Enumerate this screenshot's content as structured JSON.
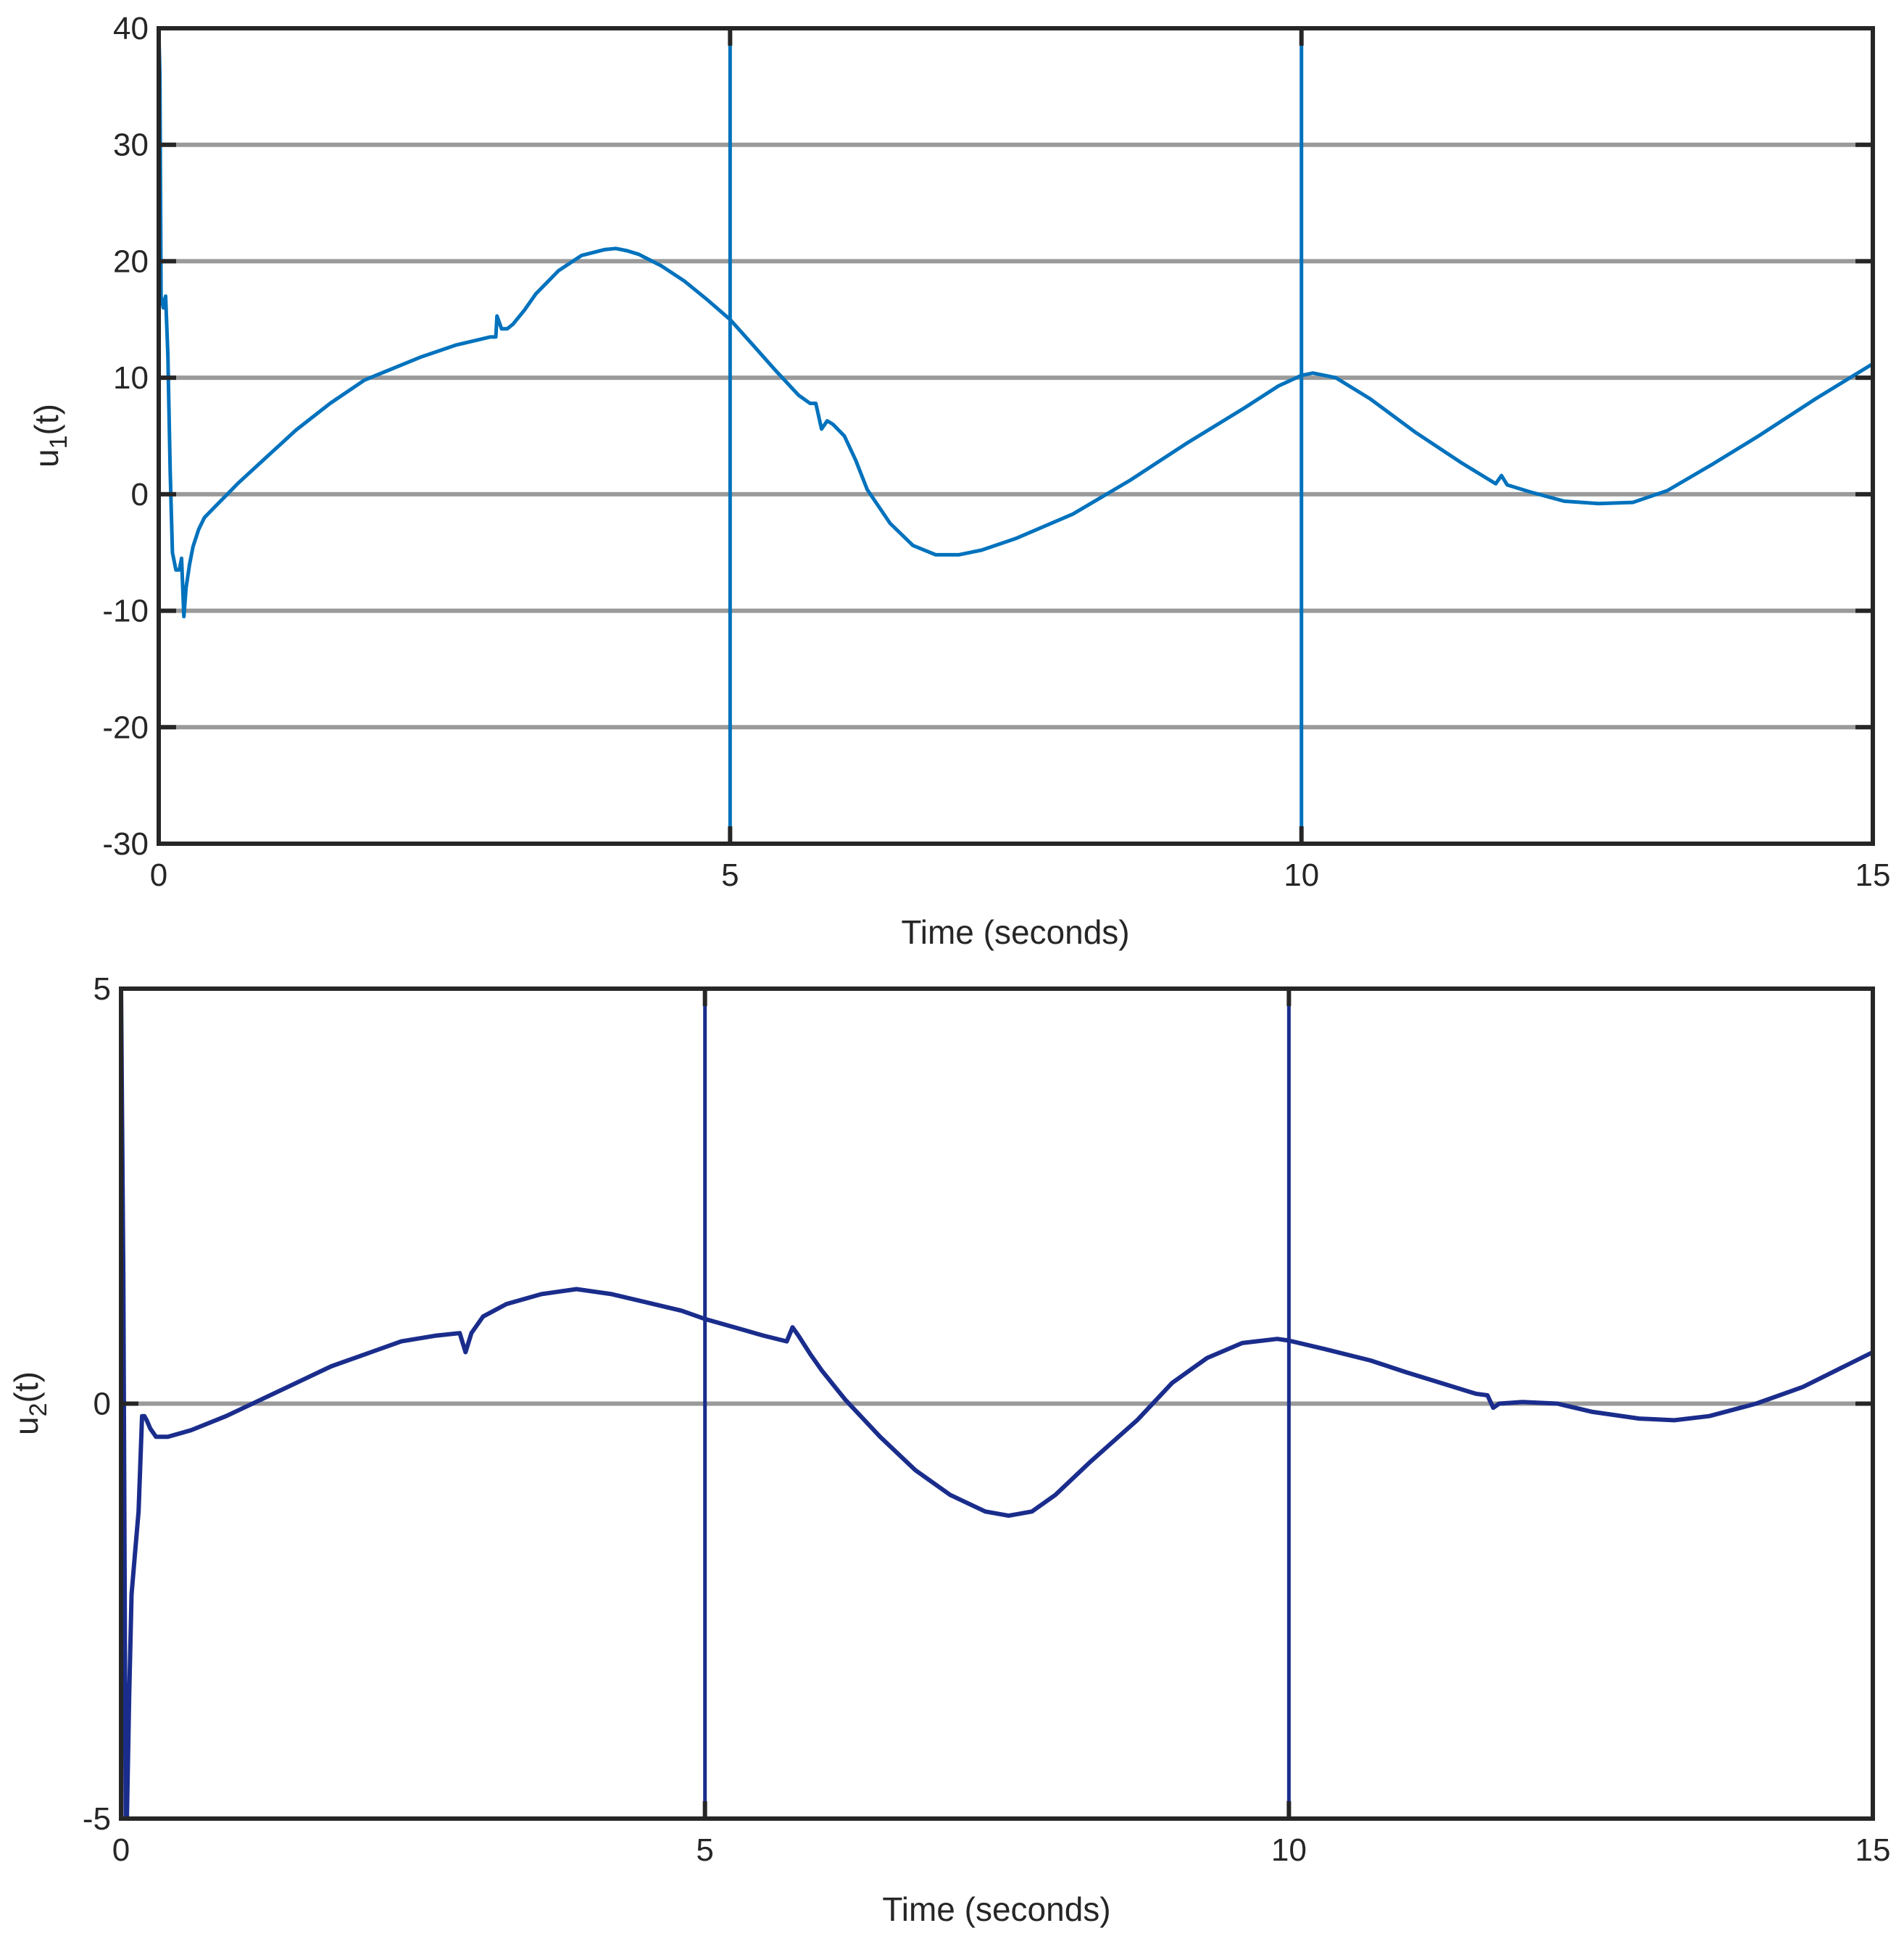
{
  "colors": {
    "series_1": "#0072BD",
    "series_2": "#1A2D8C",
    "grid": "#9a9a9a",
    "axis": "#262626"
  },
  "chart_data": [
    {
      "type": "line",
      "xlabel": "Time (seconds)",
      "ylabel_main": "u",
      "ylabel_sub": "1",
      "ylabel_tail": "(t)",
      "xlim": [
        0,
        15
      ],
      "ylim": [
        -30,
        40
      ],
      "xticks": [
        0,
        5,
        10,
        15
      ],
      "xtick_labels": [
        "0",
        "5",
        "10",
        "15"
      ],
      "yticks": [
        -30,
        -20,
        -10,
        0,
        10,
        20,
        30,
        40
      ],
      "ytick_labels": [
        "-30",
        "-20",
        "-10",
        "0",
        "10",
        "20",
        "30",
        "40"
      ],
      "grid": "horizontal",
      "series": [
        {
          "color": "#0072BD",
          "x": [
            0,
            0.01,
            0.02,
            0.04,
            0.06,
            0.08,
            0.1,
            0.12,
            0.15,
            0.18,
            0.2,
            0.22,
            0.24,
            0.27,
            0.3,
            0.35,
            0.4,
            0.5,
            0.6,
            0.7,
            0.9,
            1.2,
            1.5,
            1.8,
            2.0,
            2.3,
            2.6,
            2.9,
            2.95,
            2.96,
            3.0,
            3.05,
            3.1,
            3.2,
            3.3,
            3.5,
            3.7,
            3.9,
            4.0,
            4.1,
            4.2,
            4.4,
            4.6,
            4.8,
            5.0,
            5.2,
            5.4,
            5.6,
            5.7,
            5.75,
            5.8,
            5.85,
            5.9,
            6.0,
            6.1,
            6.2,
            6.4,
            6.6,
            6.8,
            7.0,
            7.2,
            7.5,
            8.0,
            8.5,
            9.0,
            9.5,
            9.8,
            10.0,
            10.1,
            10.3,
            10.6,
            11.0,
            11.4,
            11.7,
            11.75,
            11.8,
            12.0,
            12.3,
            12.6,
            12.9,
            13.2,
            13.6,
            14.0,
            14.5,
            15.0
          ],
          "y": [
            40,
            36,
            17,
            16,
            17,
            12,
            2,
            -5,
            -6.5,
            -6.5,
            -5.5,
            -10.5,
            -8,
            -6,
            -4.5,
            -3,
            -2,
            -1,
            0,
            1,
            2.8,
            5.5,
            7.8,
            9.8,
            10.6,
            11.8,
            12.8,
            13.5,
            13.5,
            15.3,
            14.2,
            14.2,
            14.6,
            15.8,
            17.2,
            19.2,
            20.5,
            21.0,
            21.1,
            20.9,
            20.6,
            19.6,
            18.3,
            16.7,
            15.0,
            12.8,
            10.6,
            8.5,
            7.8,
            7.8,
            5.6,
            6.3,
            6.0,
            5.0,
            2.9,
            0.4,
            -2.5,
            -4.4,
            -5.2,
            -5.2,
            -4.8,
            -3.8,
            -1.7,
            1.2,
            4.4,
            7.4,
            9.3,
            10.2,
            10.4,
            10.0,
            8.2,
            5.3,
            2.7,
            0.9,
            1.6,
            0.8,
            0.2,
            -0.6,
            -0.8,
            -0.7,
            0.3,
            2.6,
            5.0,
            8.2,
            11.2
          ]
        }
      ],
      "spikes_x": [
        5,
        10
      ]
    },
    {
      "type": "line",
      "xlabel": "Time (seconds)",
      "ylabel_main": "u",
      "ylabel_sub": "2",
      "ylabel_tail": "(t)",
      "xlim": [
        0,
        15
      ],
      "ylim": [
        -5,
        5
      ],
      "xticks": [
        0,
        5,
        10,
        15
      ],
      "xtick_labels": [
        "0",
        "5",
        "10",
        "15"
      ],
      "yticks": [
        -5,
        0,
        5
      ],
      "ytick_labels": [
        "-5",
        "0",
        "5"
      ],
      "grid": "horizontal",
      "series": [
        {
          "color": "#1A2D8C",
          "x": [
            0,
            0.02,
            0.04,
            0.05,
            0.07,
            0.09,
            0.12,
            0.15,
            0.18,
            0.2,
            0.22,
            0.25,
            0.3,
            0.4,
            0.6,
            0.9,
            1.2,
            1.5,
            1.8,
            2.1,
            2.4,
            2.7,
            2.9,
            2.95,
            3.0,
            3.1,
            3.3,
            3.6,
            3.9,
            4.2,
            4.5,
            4.8,
            5.0,
            5.3,
            5.5,
            5.7,
            5.75,
            5.8,
            5.9,
            6.0,
            6.2,
            6.5,
            6.8,
            7.1,
            7.4,
            7.6,
            7.8,
            8.0,
            8.3,
            8.7,
            9.0,
            9.3,
            9.6,
            9.9,
            10.0,
            10.3,
            10.7,
            11.0,
            11.3,
            11.6,
            11.7,
            11.75,
            11.8,
            12.0,
            12.3,
            12.6,
            13.0,
            13.3,
            13.6,
            14.0,
            14.4,
            14.8,
            15.0
          ],
          "y": [
            5,
            1.5,
            -5,
            -5,
            -3.5,
            -2.3,
            -1.8,
            -1.3,
            -0.15,
            -0.15,
            -0.2,
            -0.3,
            -0.4,
            -0.4,
            -0.32,
            -0.15,
            0.05,
            0.25,
            0.45,
            0.6,
            0.75,
            0.82,
            0.85,
            0.62,
            0.85,
            1.05,
            1.2,
            1.32,
            1.38,
            1.32,
            1.22,
            1.12,
            1.02,
            0.9,
            0.82,
            0.75,
            0.92,
            0.82,
            0.6,
            0.4,
            0.05,
            -0.4,
            -0.8,
            -1.1,
            -1.3,
            -1.35,
            -1.3,
            -1.1,
            -0.7,
            -0.2,
            0.25,
            0.55,
            0.73,
            0.78,
            0.76,
            0.66,
            0.52,
            0.38,
            0.25,
            0.12,
            0.1,
            -0.05,
            0.0,
            0.02,
            0.0,
            -0.1,
            -0.18,
            -0.2,
            -0.15,
            0.0,
            0.2,
            0.48,
            0.62
          ]
        }
      ],
      "spikes_x": [
        5,
        10
      ]
    }
  ]
}
